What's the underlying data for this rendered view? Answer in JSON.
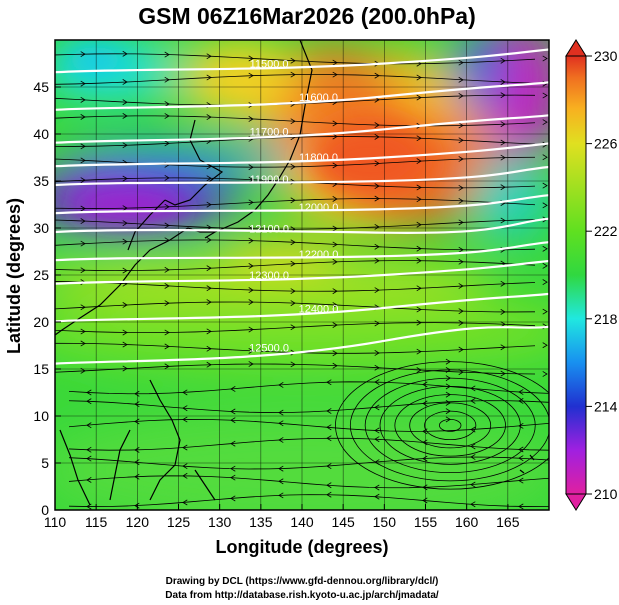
{
  "chart_data": {
    "type": "heatmap",
    "title": "GSM 06Z16Mar2026 (200.0hPa)",
    "xlabel": "Longitude (degrees)",
    "ylabel": "Latitude  (degrees)",
    "xlim": [
      110,
      170
    ],
    "ylim": [
      0,
      50
    ],
    "xticks": [
      "110",
      "115",
      "120",
      "125",
      "130",
      "135",
      "140",
      "145",
      "150",
      "155",
      "160",
      "165"
    ],
    "yticks": [
      "0",
      "5",
      "10",
      "15",
      "20",
      "25",
      "30",
      "35",
      "40",
      "45"
    ],
    "colorbar": {
      "min": 210,
      "max": 230,
      "ticks": [
        "210",
        "214",
        "218",
        "222",
        "226",
        "230"
      ],
      "colors": [
        "#e020a0",
        "#a020e0",
        "#2030d0",
        "#1890f0",
        "#20e8e0",
        "#30d840",
        "#60e020",
        "#a0e020",
        "#e0e020",
        "#f8b020",
        "#f07020",
        "#e03020"
      ]
    },
    "contours": [
      {
        "label": "11500.0",
        "lat_at_120": 47.0,
        "lat_at_150": 47.5
      },
      {
        "label": "11600.0",
        "lat_at_120": 43.0,
        "lat_at_150": 44.0
      },
      {
        "label": "11700.0",
        "lat_at_120": 39.5,
        "lat_at_150": 40.5
      },
      {
        "label": "11800.0",
        "lat_at_120": 37.0,
        "lat_at_150": 37.5
      },
      {
        "label": "11900.0",
        "lat_at_120": 35.0,
        "lat_at_150": 35.0
      },
      {
        "label": "12000.0",
        "lat_at_120": 32.0,
        "lat_at_150": 32.0
      },
      {
        "label": "12100.0",
        "lat_at_120": 30.0,
        "lat_at_150": 29.5
      },
      {
        "label": "12200.0",
        "lat_at_120": 27.0,
        "lat_at_150": 27.0
      },
      {
        "label": "12300.0",
        "lat_at_120": 24.5,
        "lat_at_150": 25.0
      },
      {
        "label": "12400.0",
        "lat_at_120": 20.5,
        "lat_at_150": 21.5
      },
      {
        "label": "12500.0",
        "lat_at_120": 16.0,
        "lat_at_150": 18.0
      }
    ],
    "anticyclone_center": {
      "lon": 158,
      "lat": 9
    }
  },
  "credits": {
    "line1": "Drawing by DCL (https://www.gfd-dennou.org/library/dcl/)",
    "line2": "Data from http://database.rish.kyoto-u.ac.jp/arch/jmadata/"
  }
}
